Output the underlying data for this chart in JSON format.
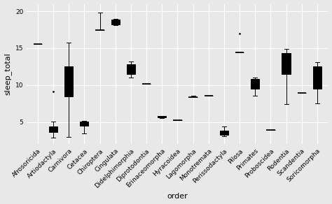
{
  "orders": [
    "Afrosoricida",
    "Artiodactyla",
    "Carnivora",
    "Cetacea",
    "Chiroptera",
    "Cingulata",
    "Didelphimorphia",
    "Diprotodontia",
    "Erinaceomorpha",
    "Hyracoidea",
    "Lagomorpha",
    "Monotremata",
    "Perissodactyla",
    "Pilosa",
    "Primates",
    "Proboscidea",
    "Rodentia",
    "Scandentia",
    "Soricomorpha"
  ],
  "boxplot_data": {
    "Afrosoricida": {
      "whislo": 15.6,
      "q1": 15.6,
      "med": 15.6,
      "q3": 15.6,
      "whishi": 15.6,
      "fliers": []
    },
    "Artiodactyla": {
      "whislo": 2.9,
      "q1": 3.65,
      "med": 4.0,
      "q3": 4.45,
      "whishi": 5.1,
      "fliers": [
        9.1
      ]
    },
    "Carnivora": {
      "whislo": 3.0,
      "q1": 8.5,
      "med": 10.4,
      "q3": 12.5,
      "whishi": 15.8,
      "fliers": []
    },
    "Cetacea": {
      "whislo": 3.5,
      "q1": 4.5,
      "med": 4.85,
      "q3": 5.05,
      "whishi": 5.2,
      "fliers": []
    },
    "Chiroptera": {
      "whislo": 17.5,
      "q1": 17.5,
      "med": 17.5,
      "q3": 17.5,
      "whishi": 19.8,
      "fliers": []
    },
    "Cingulata": {
      "whislo": 18.1,
      "q1": 18.2,
      "med": 18.5,
      "q3": 18.9,
      "whishi": 19.0,
      "fliers": []
    },
    "Didelphimorphia": {
      "whislo": 11.0,
      "q1": 11.5,
      "med": 12.5,
      "q3": 12.85,
      "whishi": 13.2,
      "fliers": []
    },
    "Diprotodontia": {
      "whislo": 10.2,
      "q1": 10.2,
      "med": 10.2,
      "q3": 10.2,
      "whishi": 10.2,
      "fliers": []
    },
    "Erinaceomorpha": {
      "whislo": 5.5,
      "q1": 5.65,
      "med": 5.75,
      "q3": 5.85,
      "whishi": 5.85,
      "fliers": []
    },
    "Hyracoidea": {
      "whislo": 5.3,
      "q1": 5.3,
      "med": 5.3,
      "q3": 5.3,
      "whishi": 5.3,
      "fliers": []
    },
    "Lagomorpha": {
      "whislo": 8.4,
      "q1": 8.4,
      "med": 8.4,
      "q3": 8.4,
      "whishi": 8.6,
      "fliers": []
    },
    "Monotremata": {
      "whislo": 8.6,
      "q1": 8.6,
      "med": 8.6,
      "q3": 8.6,
      "whishi": 8.6,
      "fliers": []
    },
    "Perissodactyla": {
      "whislo": 3.1,
      "q1": 3.25,
      "med": 3.5,
      "q3": 3.85,
      "whishi": 4.4,
      "fliers": []
    },
    "Pilosa": {
      "whislo": 14.4,
      "q1": 14.4,
      "med": 14.4,
      "q3": 14.4,
      "whishi": 14.4,
      "fliers": [
        17.0
      ]
    },
    "Primates": {
      "whislo": 8.6,
      "q1": 9.55,
      "med": 10.0,
      "q3": 10.8,
      "whishi": 11.0,
      "fliers": []
    },
    "Proboscidea": {
      "whislo": 3.9,
      "q1": 3.9,
      "med": 3.9,
      "q3": 3.9,
      "whishi": 3.9,
      "fliers": []
    },
    "Rodentia": {
      "whislo": 7.4,
      "q1": 11.5,
      "med": 13.0,
      "q3": 14.3,
      "whishi": 14.9,
      "fliers": []
    },
    "Scandentia": {
      "whislo": 8.9,
      "q1": 8.9,
      "med": 8.9,
      "q3": 8.9,
      "whishi": 8.9,
      "fliers": []
    },
    "Soricomorpha": {
      "whislo": 7.5,
      "q1": 9.5,
      "med": 10.5,
      "q3": 12.5,
      "whishi": 13.1,
      "fliers": []
    }
  },
  "xlabel": "order",
  "ylabel": "sleep_total",
  "ylim": [
    2.0,
    21.0
  ],
  "yticks": [
    5,
    10,
    15,
    20
  ],
  "bg_color": "#e8e8e8",
  "box_color": "white",
  "median_color": "black",
  "whisker_color": "black",
  "flier_color": "black",
  "grid_color": "white",
  "label_fontsize": 8,
  "tick_fontsize": 6.5
}
